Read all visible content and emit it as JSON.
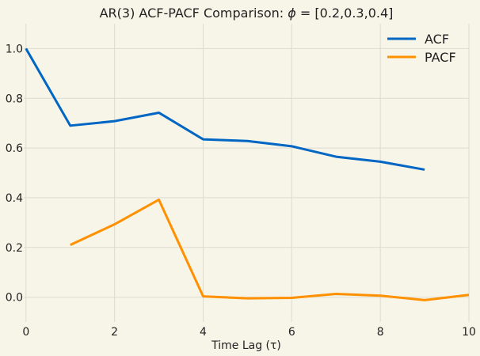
{
  "chart_data": {
    "type": "line",
    "title": "AR(3) ACF-PACF Comparison: ",
    "title_phi": "ϕ",
    "title_eq": " = [0.2,0.3,0.4]",
    "xlabel": "Time Lag (τ)",
    "ylabel": "",
    "xlim": [
      -0.05,
      10
    ],
    "ylim": [
      -0.1,
      1.1
    ],
    "xticks": [
      0,
      2,
      4,
      6,
      8,
      10
    ],
    "yticks": [
      0.0,
      0.2,
      0.4,
      0.6,
      0.8,
      1.0
    ],
    "xtick_labels": [
      "0",
      "2",
      "4",
      "6",
      "8",
      "10"
    ],
    "ytick_labels": [
      "0.0",
      "0.2",
      "0.4",
      "0.6",
      "0.8",
      "1.0"
    ],
    "grid": true,
    "legend_position": "top-right",
    "series": [
      {
        "name": "ACF",
        "color": "#0066c4",
        "x": [
          0,
          1,
          2,
          3,
          4,
          5,
          6,
          7,
          8,
          9
        ],
        "y": [
          1.0,
          0.69,
          0.708,
          0.742,
          0.635,
          0.628,
          0.607,
          0.565,
          0.545,
          0.513
        ]
      },
      {
        "name": "PACF",
        "color": "#ff9100",
        "x": [
          1,
          2,
          3,
          4,
          5,
          6,
          7,
          8,
          9,
          10
        ],
        "y": [
          0.21,
          0.293,
          0.392,
          0.003,
          -0.005,
          -0.003,
          0.013,
          0.006,
          -0.012,
          0.009
        ]
      }
    ]
  }
}
